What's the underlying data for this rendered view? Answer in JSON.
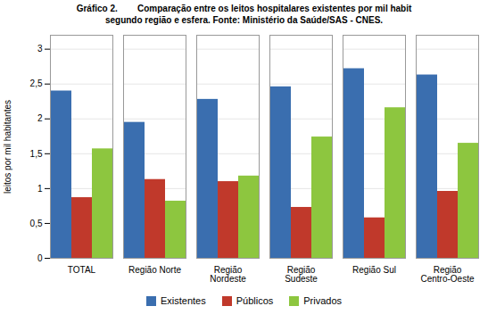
{
  "chart_data": {
    "type": "bar",
    "title": "Gráfico 2.        Comparação entre os leitos hospitalares existentes por mil habit",
    "subtitle": "segundo região e esfera. Fonte: Ministério da Saúde/SAS ‐ CNES.",
    "categories": [
      "TOTAL",
      "Região Norte",
      "Região\nNordeste",
      "Região\nSudeste",
      "Região Sul",
      "Região\nCentro-Oeste"
    ],
    "series": [
      {
        "name": "Existentes",
        "color": "#3A6EAF",
        "values": [
          2.4,
          1.95,
          2.28,
          2.46,
          2.72,
          2.63
        ]
      },
      {
        "name": "Públicos",
        "color": "#C0392B",
        "values": [
          0.87,
          1.13,
          1.1,
          0.73,
          0.58,
          0.96
        ]
      },
      {
        "name": "Privados",
        "color": "#8DC63F",
        "values": [
          1.57,
          0.82,
          1.18,
          1.74,
          2.16,
          1.65
        ]
      }
    ],
    "ylabel": "leitos por mil habitantes",
    "ylim": [
      0,
      3.2
    ],
    "yticks": [
      0,
      {
        "value": 0.5,
        "label": "0,5"
      },
      1,
      {
        "value": 1.5,
        "label": "1,5"
      },
      2,
      {
        "value": 2.5,
        "label": "2,5"
      },
      3
    ],
    "grid": true,
    "legend": "bottom"
  }
}
